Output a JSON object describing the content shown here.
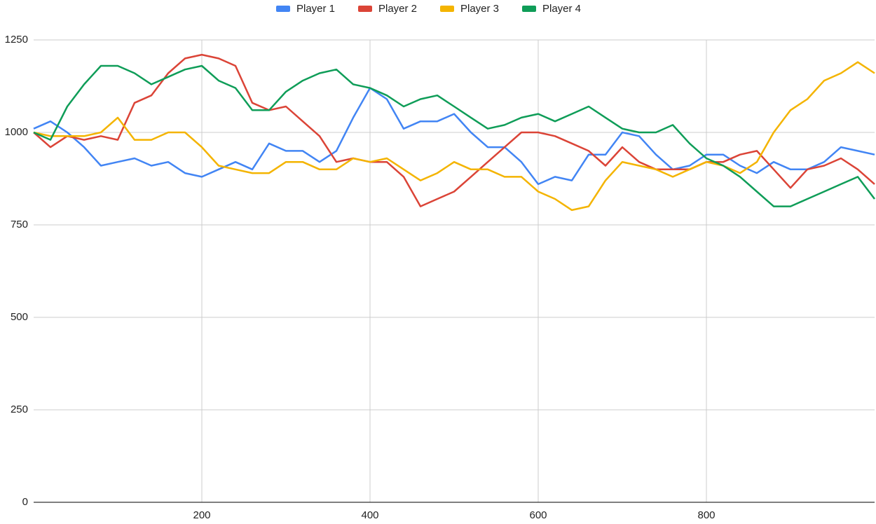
{
  "chart_data": {
    "type": "line",
    "x": [
      0,
      20,
      40,
      60,
      80,
      100,
      120,
      140,
      160,
      180,
      200,
      220,
      240,
      260,
      280,
      300,
      320,
      340,
      360,
      380,
      400,
      420,
      440,
      460,
      480,
      500,
      520,
      540,
      560,
      580,
      600,
      620,
      640,
      660,
      680,
      700,
      720,
      740,
      760,
      780,
      800,
      820,
      840,
      860,
      880,
      900,
      920,
      940,
      960,
      980,
      1000
    ],
    "series": [
      {
        "name": "Player 1",
        "color": "#4285f4",
        "values": [
          1010,
          1030,
          1000,
          960,
          910,
          920,
          930,
          910,
          920,
          890,
          880,
          900,
          920,
          900,
          970,
          950,
          950,
          920,
          950,
          1040,
          1120,
          1090,
          1010,
          1030,
          1030,
          1050,
          1000,
          960,
          960,
          920,
          860,
          880,
          870,
          940,
          940,
          1000,
          990,
          940,
          900,
          910,
          940,
          940,
          910,
          890,
          920,
          900,
          900,
          920,
          960,
          950,
          940
        ]
      },
      {
        "name": "Player 2",
        "color": "#db4437",
        "values": [
          1000,
          960,
          990,
          980,
          990,
          980,
          1080,
          1100,
          1160,
          1200,
          1210,
          1200,
          1180,
          1080,
          1060,
          1070,
          1030,
          990,
          920,
          930,
          920,
          920,
          880,
          800,
          820,
          840,
          880,
          920,
          960,
          1000,
          1000,
          990,
          970,
          950,
          910,
          960,
          920,
          900,
          900,
          900,
          920,
          920,
          940,
          950,
          900,
          850,
          900,
          910,
          930,
          900,
          860
        ]
      },
      {
        "name": "Player 3",
        "color": "#f4b400",
        "values": [
          1000,
          990,
          990,
          990,
          1000,
          1040,
          980,
          980,
          1000,
          1000,
          960,
          910,
          900,
          890,
          890,
          920,
          920,
          900,
          900,
          930,
          920,
          930,
          900,
          870,
          890,
          920,
          900,
          900,
          880,
          880,
          840,
          820,
          790,
          800,
          870,
          920,
          910,
          900,
          880,
          900,
          920,
          910,
          890,
          920,
          1000,
          1060,
          1090,
          1140,
          1160,
          1190,
          1160
        ]
      },
      {
        "name": "Player 4",
        "color": "#0f9d58",
        "values": [
          1000,
          980,
          1070,
          1130,
          1180,
          1180,
          1160,
          1130,
          1150,
          1170,
          1180,
          1140,
          1120,
          1060,
          1060,
          1110,
          1140,
          1160,
          1170,
          1130,
          1120,
          1100,
          1070,
          1090,
          1100,
          1070,
          1040,
          1010,
          1020,
          1040,
          1050,
          1030,
          1050,
          1070,
          1040,
          1010,
          1000,
          1000,
          1020,
          970,
          930,
          910,
          880,
          840,
          800,
          800,
          820,
          840,
          860,
          880,
          820
        ]
      }
    ],
    "xlim": [
      0,
      1000
    ],
    "ylim": [
      0,
      1250
    ],
    "xticks": [
      200,
      400,
      600,
      800
    ],
    "yticks": [
      0,
      250,
      500,
      750,
      1000,
      1250
    ],
    "grid": true,
    "legend": "top"
  }
}
